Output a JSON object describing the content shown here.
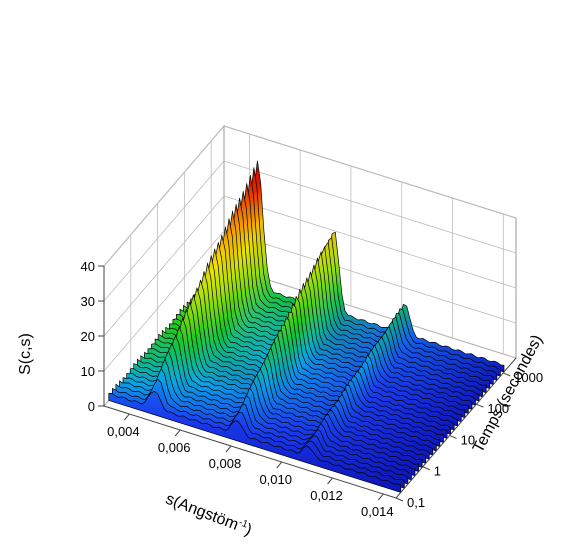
{
  "chart_data": {
    "type": "3d-waterfall",
    "title": "",
    "xlabel": "s(Angstöm",
    "xlabel_sup": "-1",
    "xlabel_close": ")",
    "ylabel": "Temps (secondes)",
    "zlabel": "S(c,s)",
    "x_ticks": [
      "0,004",
      "0,006",
      "0,008",
      "0,010",
      "0,012",
      "0,014"
    ],
    "x_tick_values": [
      0.004,
      0.006,
      0.008,
      0.01,
      0.012,
      0.014
    ],
    "xlim": [
      0.003,
      0.0145
    ],
    "y_ticks": [
      "0,1",
      "1",
      "10",
      "100",
      "1000"
    ],
    "y_tick_values": [
      0.1,
      1,
      10,
      100,
      1000
    ],
    "ylim": [
      0.1,
      3000
    ],
    "y_scale": "log",
    "z_ticks": [
      "0",
      "10",
      "20",
      "30",
      "40"
    ],
    "z_tick_values": [
      0,
      10,
      20,
      30,
      40
    ],
    "zlim": [
      0,
      40
    ],
    "grid": true,
    "colormap": [
      "#0d14b8",
      "#1a3df0",
      "#0aa8e6",
      "#14c81e",
      "#9ee010",
      "#f2e600",
      "#f59a00",
      "#e01800",
      "#b40000"
    ],
    "series_count": 30,
    "peaks": [
      {
        "s": 0.0048,
        "width": 0.00028,
        "z_start": 5,
        "z_end": 36
      },
      {
        "s": 0.0078,
        "width": 0.00026,
        "z_start": 4,
        "z_end": 24
      },
      {
        "s": 0.0106,
        "width": 0.00024,
        "z_start": 3,
        "z_end": 9
      }
    ],
    "baseline_z": 2
  }
}
